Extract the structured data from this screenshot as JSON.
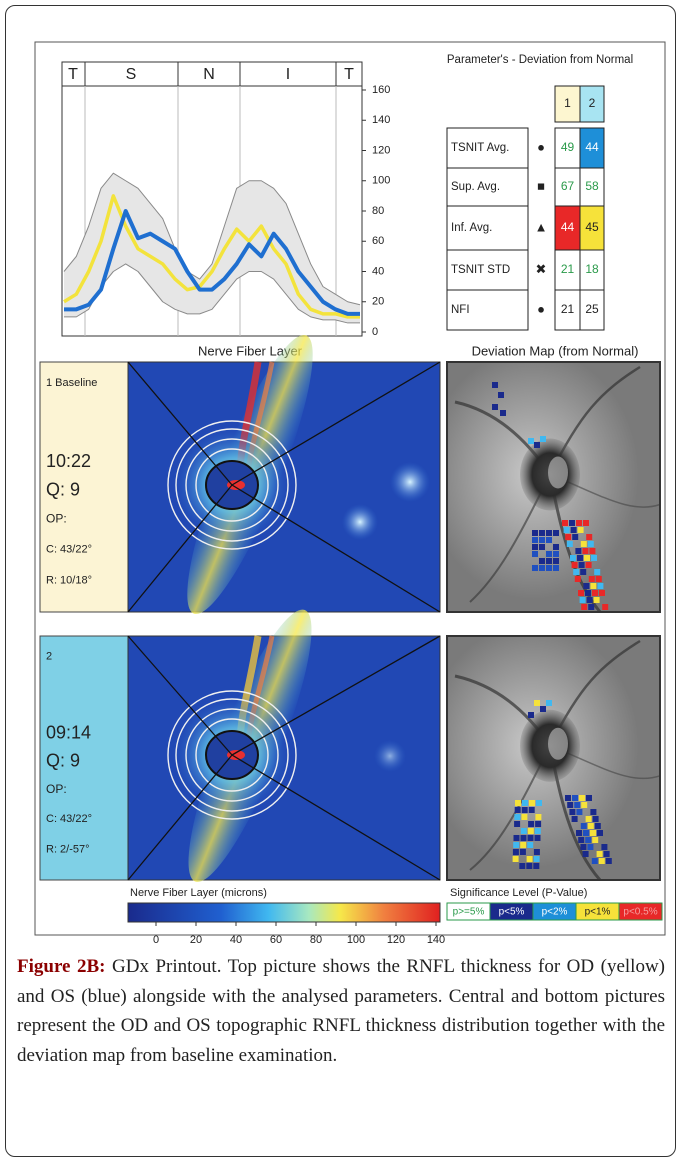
{
  "chart_data": {
    "type": "line",
    "sectors": [
      "T",
      "S",
      "N",
      "I",
      "T"
    ],
    "ylim": [
      0,
      160
    ],
    "yticks": [
      0,
      20,
      40,
      60,
      80,
      100,
      120,
      140,
      160
    ],
    "series": [
      {
        "color": "#8a8a8a",
        "values": [
          40,
          50,
          70,
          95,
          105,
          100,
          95,
          85,
          75,
          55,
          40,
          35,
          45,
          70,
          95,
          100,
          100,
          95,
          85,
          65,
          45,
          30,
          25,
          20,
          18
        ]
      },
      {
        "color": "#8a8a8a",
        "values": [
          10,
          10,
          15,
          30,
          40,
          45,
          40,
          30,
          20,
          15,
          12,
          12,
          15,
          25,
          35,
          40,
          40,
          35,
          25,
          15,
          10,
          8,
          8,
          6,
          6
        ]
      },
      {
        "color": "#f3e33c",
        "values": [
          20,
          25,
          40,
          60,
          90,
          70,
          55,
          50,
          45,
          35,
          28,
          30,
          40,
          55,
          68,
          60,
          70,
          55,
          45,
          25,
          15,
          12,
          12,
          10,
          10
        ]
      },
      {
        "color": "#1f6fd0",
        "values": [
          15,
          15,
          18,
          28,
          55,
          80,
          62,
          65,
          60,
          55,
          40,
          28,
          28,
          35,
          45,
          58,
          50,
          65,
          55,
          40,
          30,
          20,
          15,
          12,
          12
        ]
      }
    ]
  },
  "parameters": {
    "title": "Parameter's - Deviation from Normal",
    "columns": [
      "1",
      "2"
    ],
    "rows": [
      {
        "label": "TSNIT Avg.",
        "symbol": "●",
        "values": [
          49,
          44
        ]
      },
      {
        "label": "Sup. Avg.",
        "symbol": "■",
        "values": [
          67,
          58
        ]
      },
      {
        "label": "Inf. Avg.",
        "symbol": "▲",
        "values": [
          44,
          45
        ]
      },
      {
        "label": "TSNIT STD",
        "symbol": "✖",
        "values": [
          21,
          18
        ]
      },
      {
        "label": "NFI",
        "symbol": "●",
        "values": [
          21,
          25
        ]
      }
    ]
  },
  "panel_titles": [
    "Nerve Fiber Layer",
    "Deviation Map (from Normal)"
  ],
  "scans": [
    {
      "id": "1 Baseline",
      "time": "10:22",
      "quality": "Q: 9",
      "op": "OP:",
      "c": "C: 43/22°",
      "r": "R: 10/18°"
    },
    {
      "id": "2",
      "time": "09:14",
      "quality": "Q: 9",
      "op": "OP:",
      "c": "C: 43/22°",
      "r": "R: 2/-57°"
    }
  ],
  "colorbar": {
    "label": "Nerve Fiber Layer (microns)",
    "lim": [
      -14,
      142
    ],
    "ticks": [
      0,
      20,
      40,
      60,
      80,
      100,
      120,
      140
    ]
  },
  "significance": {
    "label": "Significance Level (P-Value)",
    "levels": [
      "p>=5%",
      "p<5%",
      "p<2%",
      "p<1%",
      "p<0.5%"
    ]
  },
  "caption": {
    "label": "Figure 2B:",
    "text": " GDx Printout. Top picture shows the RNFL thickness for OD (yellow) and OS (blue) alongside with the analysed parameters. Central and bottom pictures represent the OD and OS topographic RNFL thickness distribution together with the deviation map from baseline examination."
  }
}
